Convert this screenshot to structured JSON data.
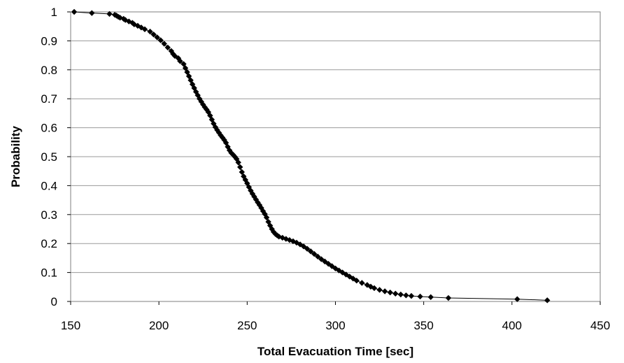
{
  "chart_data": {
    "type": "scatter",
    "xlabel": "Total Evacuation Time [sec]",
    "ylabel": "Probability",
    "xlim": [
      150,
      450
    ],
    "ylim": [
      0,
      1
    ],
    "x_ticks": [
      150,
      200,
      250,
      300,
      350,
      400,
      450
    ],
    "y_ticks": [
      0,
      0.1,
      0.2,
      0.3,
      0.4,
      0.5,
      0.6,
      0.7,
      0.8,
      0.9,
      1
    ],
    "x_tick_labels": [
      "150",
      "200",
      "250",
      "300",
      "350",
      "400",
      "450"
    ],
    "y_tick_labels": [
      "0",
      "0.1",
      "0.2",
      "0.3",
      "0.4",
      "0.5",
      "0.6",
      "0.7",
      "0.8",
      "0.9",
      "1"
    ],
    "grid": "horizontal",
    "legend": "none",
    "series": [
      {
        "marker": "diamond",
        "color": "#000000",
        "line": true,
        "x": [
          152,
          162,
          172,
          175,
          176,
          177,
          178,
          180,
          181,
          183,
          185,
          186,
          188,
          190,
          192,
          195,
          197,
          199,
          201,
          203,
          205,
          207,
          208,
          209,
          211,
          212,
          214,
          215,
          216,
          217,
          218,
          219,
          220,
          221,
          222,
          223,
          224,
          225,
          226,
          227,
          228,
          229,
          230,
          231,
          232,
          233,
          234,
          235,
          236,
          237,
          238,
          239,
          240,
          241,
          242,
          243,
          244,
          245,
          246,
          247,
          248,
          249,
          250,
          251,
          252,
          253,
          254,
          255,
          256,
          257,
          258,
          259,
          260,
          261,
          262,
          263,
          264,
          265,
          266,
          267,
          268,
          270,
          272,
          274,
          276,
          278,
          280,
          282,
          284,
          286,
          288,
          290,
          292,
          294,
          296,
          298,
          300,
          302,
          304,
          306,
          308,
          310,
          312,
          315,
          318,
          320,
          322,
          325,
          328,
          331,
          334,
          337,
          340,
          343,
          348,
          354,
          364,
          403,
          420
        ],
        "y": [
          1.0,
          0.996,
          0.993,
          0.99,
          0.987,
          0.983,
          0.98,
          0.976,
          0.972,
          0.967,
          0.962,
          0.957,
          0.952,
          0.946,
          0.94,
          0.932,
          0.922,
          0.912,
          0.902,
          0.89,
          0.877,
          0.865,
          0.855,
          0.848,
          0.84,
          0.83,
          0.82,
          0.806,
          0.792,
          0.778,
          0.764,
          0.75,
          0.737,
          0.724,
          0.712,
          0.7,
          0.69,
          0.68,
          0.671,
          0.663,
          0.654,
          0.642,
          0.628,
          0.614,
          0.602,
          0.592,
          0.583,
          0.574,
          0.566,
          0.558,
          0.548,
          0.534,
          0.522,
          0.513,
          0.507,
          0.5,
          0.492,
          0.48,
          0.464,
          0.447,
          0.432,
          0.42,
          0.408,
          0.395,
          0.383,
          0.372,
          0.362,
          0.352,
          0.342,
          0.333,
          0.323,
          0.312,
          0.302,
          0.29,
          0.275,
          0.262,
          0.25,
          0.24,
          0.233,
          0.228,
          0.224,
          0.22,
          0.216,
          0.212,
          0.208,
          0.203,
          0.197,
          0.19,
          0.182,
          0.173,
          0.164,
          0.155,
          0.146,
          0.138,
          0.13,
          0.122,
          0.114,
          0.107,
          0.1,
          0.093,
          0.086,
          0.079,
          0.072,
          0.064,
          0.057,
          0.051,
          0.046,
          0.04,
          0.035,
          0.031,
          0.027,
          0.024,
          0.021,
          0.019,
          0.017,
          0.015,
          0.012,
          0.008,
          0.004
        ]
      }
    ]
  }
}
